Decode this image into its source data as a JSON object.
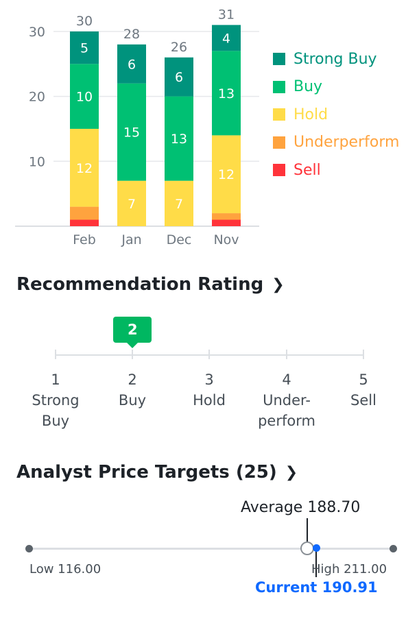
{
  "chart_data": {
    "type": "bar",
    "stacked": true,
    "categories": [
      "Feb",
      "Jan",
      "Dec",
      "Nov"
    ],
    "totals": [
      30,
      28,
      26,
      31
    ],
    "yticks": [
      10,
      20,
      30
    ],
    "ylim": [
      0,
      31
    ],
    "grid": true,
    "legend_position": "right",
    "series": [
      {
        "name": "Sell",
        "color": "#ff333a",
        "values": [
          1,
          0,
          0,
          1
        ]
      },
      {
        "name": "Underperform",
        "color": "#ffa33e",
        "values": [
          2,
          0,
          0,
          1
        ]
      },
      {
        "name": "Hold",
        "color": "#ffdc48",
        "values": [
          12,
          7,
          7,
          12
        ]
      },
      {
        "name": "Buy",
        "color": "#00c073",
        "values": [
          10,
          15,
          13,
          13
        ]
      },
      {
        "name": "Strong Buy",
        "color": "#00937d",
        "values": [
          5,
          6,
          6,
          4
        ]
      }
    ],
    "legend": [
      {
        "name": "Strong Buy",
        "color": "#00937d"
      },
      {
        "name": "Buy",
        "color": "#00c073"
      },
      {
        "name": "Hold",
        "color": "#ffdc48"
      },
      {
        "name": "Underperform",
        "color": "#ffa33e"
      },
      {
        "name": "Sell",
        "color": "#ff333a"
      }
    ]
  },
  "recommendation": {
    "title": "Recommendation Rating",
    "chevron": "chevron-right-icon",
    "value": 2,
    "value_label": "2",
    "scale": [
      {
        "num": "1",
        "lines": [
          "Strong",
          "Buy"
        ]
      },
      {
        "num": "2",
        "lines": [
          "Buy"
        ]
      },
      {
        "num": "3",
        "lines": [
          "Hold"
        ]
      },
      {
        "num": "4",
        "lines": [
          "Under-",
          "perform"
        ]
      },
      {
        "num": "5",
        "lines": [
          "Sell"
        ]
      }
    ],
    "flag_color": "#00b761"
  },
  "price_targets": {
    "title": "Analyst Price Targets (25)",
    "chevron": "chevron-right-icon",
    "low": 116.0,
    "high": 211.0,
    "average": 188.7,
    "current": 190.91,
    "low_label": "Low 116.00",
    "high_label": "High 211.00",
    "average_label": "Average 188.70",
    "current_label": "Current 190.91",
    "current_color": "#0f69ff"
  }
}
